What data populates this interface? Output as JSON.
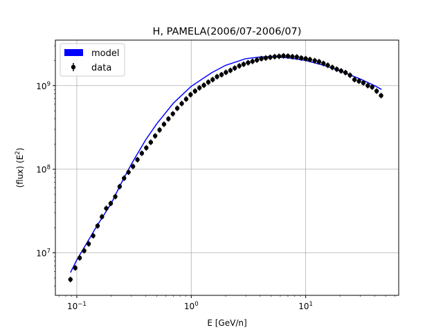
{
  "chart_data": {
    "type": "scatter",
    "title": "H, PAMELA(2006/07-2006/07)",
    "xlabel": "E [GeV/n]",
    "ylabel_main": "(flux)  (E",
    "ylabel_sup": "2",
    "ylabel_close": ")",
    "xscale": "log",
    "yscale": "log",
    "xlim": [
      0.065,
      65
    ],
    "ylim": [
      3100000.0,
      3500000000.0
    ],
    "grid": true,
    "legend_position": "top-left",
    "x_ticks": [
      {
        "value": 0.1,
        "base": "10",
        "exp": "−1"
      },
      {
        "value": 1,
        "base": "10",
        "exp": "0"
      },
      {
        "value": 10,
        "base": "10",
        "exp": "1"
      }
    ],
    "y_ticks": [
      {
        "value": 10000000.0,
        "base": "10",
        "exp": "7"
      },
      {
        "value": 100000000.0,
        "base": "10",
        "exp": "8"
      },
      {
        "value": 1000000000.0,
        "base": "10",
        "exp": "9"
      }
    ],
    "series": [
      {
        "name": "model",
        "kind": "line",
        "color": "#0000ff",
        "x": [
          0.088,
          0.1,
          0.12,
          0.15,
          0.2,
          0.25,
          0.3,
          0.4,
          0.5,
          0.7,
          1.0,
          1.5,
          2.0,
          3.0,
          4.0,
          5.0,
          7.0,
          10.0,
          15.0,
          20.0,
          30.0,
          40.0,
          46.0
        ],
        "y": [
          5800000.0,
          8200000.0,
          12500000.0,
          21000000.0,
          39000000.0,
          72000000.0,
          115000000.0,
          225000000.0,
          350000000.0,
          620000000.0,
          980000000.0,
          1420000000.0,
          1750000000.0,
          2100000000.0,
          2200000000.0,
          2230000000.0,
          2150000000.0,
          2000000000.0,
          1720000000.0,
          1500000000.0,
          1200000000.0,
          1000000000.0,
          900000000.0
        ]
      },
      {
        "name": "data",
        "kind": "scatter",
        "color": "#000000",
        "x": [
          0.088,
          0.097,
          0.106,
          0.116,
          0.127,
          0.139,
          0.152,
          0.166,
          0.181,
          0.198,
          0.217,
          0.237,
          0.259,
          0.283,
          0.31,
          0.339,
          0.37,
          0.405,
          0.443,
          0.484,
          0.529,
          0.578,
          0.632,
          0.691,
          0.755,
          0.826,
          0.903,
          0.987,
          1.08,
          1.18,
          1.29,
          1.41,
          1.54,
          1.68,
          1.84,
          2.01,
          2.2,
          2.4,
          2.63,
          2.87,
          3.14,
          3.43,
          3.75,
          4.1,
          4.48,
          4.9,
          5.36,
          5.86,
          6.4,
          7.0,
          7.65,
          8.37,
          9.15,
          10.0,
          10.9,
          12.0,
          13.1,
          14.3,
          15.6,
          17.1,
          18.7,
          20.4,
          22.3,
          24.4,
          26.7,
          29.2,
          31.9,
          34.9,
          38.1,
          41.7,
          45.6
        ],
        "y": [
          4800000.0,
          6600000.0,
          8700000.0,
          10600000.0,
          12800000.0,
          16000000.0,
          21000000.0,
          27000000.0,
          34000000.0,
          39000000.0,
          47000000.0,
          62000000.0,
          78000000.0,
          92000000.0,
          108000000.0,
          130000000.0,
          155000000.0,
          180000000.0,
          210000000.0,
          250000000.0,
          295000000.0,
          345000000.0,
          400000000.0,
          460000000.0,
          535000000.0,
          610000000.0,
          690000000.0,
          780000000.0,
          860000000.0,
          940000000.0,
          1010000000.0,
          1100000000.0,
          1180000000.0,
          1280000000.0,
          1350000000.0,
          1440000000.0,
          1520000000.0,
          1620000000.0,
          1720000000.0,
          1800000000.0,
          1880000000.0,
          1950000000.0,
          2020000000.0,
          2100000000.0,
          2140000000.0,
          2180000000.0,
          2220000000.0,
          2240000000.0,
          2270000000.0,
          2250000000.0,
          2220000000.0,
          2200000000.0,
          2140000000.0,
          2100000000.0,
          2050000000.0,
          1990000000.0,
          1930000000.0,
          1840000000.0,
          1750000000.0,
          1650000000.0,
          1570000000.0,
          1500000000.0,
          1430000000.0,
          1330000000.0,
          1180000000.0,
          1130000000.0,
          1080000000.0,
          1000000000.0,
          960000000.0,
          860000000.0,
          760000000.0
        ]
      }
    ]
  }
}
